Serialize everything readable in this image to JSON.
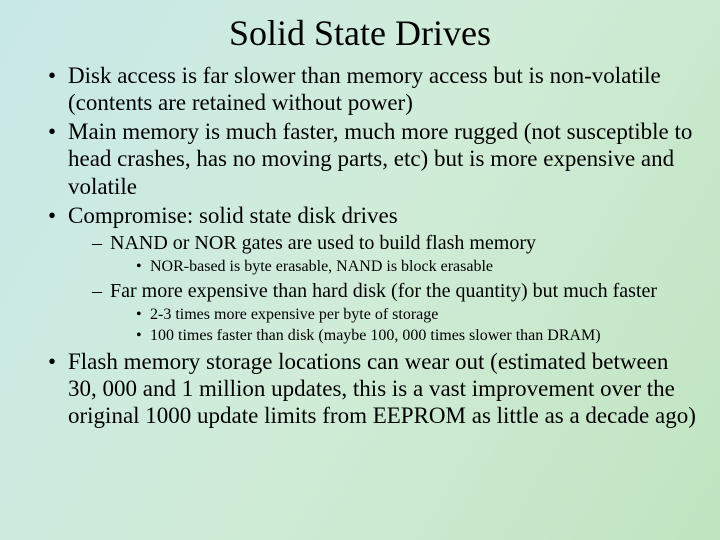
{
  "title": "Solid State Drives",
  "bullets": {
    "b1": "Disk access is far slower than memory access but is non-volatile (contents are retained without power)",
    "b2": "Main memory is much faster, much more rugged (not susceptible to head crashes, has no moving parts, etc) but is more expensive and volatile",
    "b3": "Compromise:  solid state disk drives",
    "b3_1": "NAND or NOR gates are used to build flash memory",
    "b3_1_1": "NOR-based is byte erasable, NAND is block erasable",
    "b3_2": "Far more expensive than hard disk (for the quantity) but much faster",
    "b3_2_1": "2-3 times more expensive per byte of storage",
    "b3_2_2": "100 times faster than disk (maybe 100, 000 times slower than DRAM)",
    "b4": "Flash memory storage locations can wear out (estimated between 30, 000 and 1 million updates, this is a vast improvement over the original 1000 update limits from EEPROM as little as a decade ago)"
  },
  "style": {
    "title_fontsize": 36,
    "level1_fontsize": 23,
    "level2_fontsize": 20,
    "level3_fontsize": 16,
    "text_color": "#000000",
    "bg_gradient_from": "#c8e8e8",
    "bg_gradient_mid": "#d0ecd8",
    "bg_gradient_to": "#c0e4c0",
    "font_family": "Times New Roman"
  }
}
